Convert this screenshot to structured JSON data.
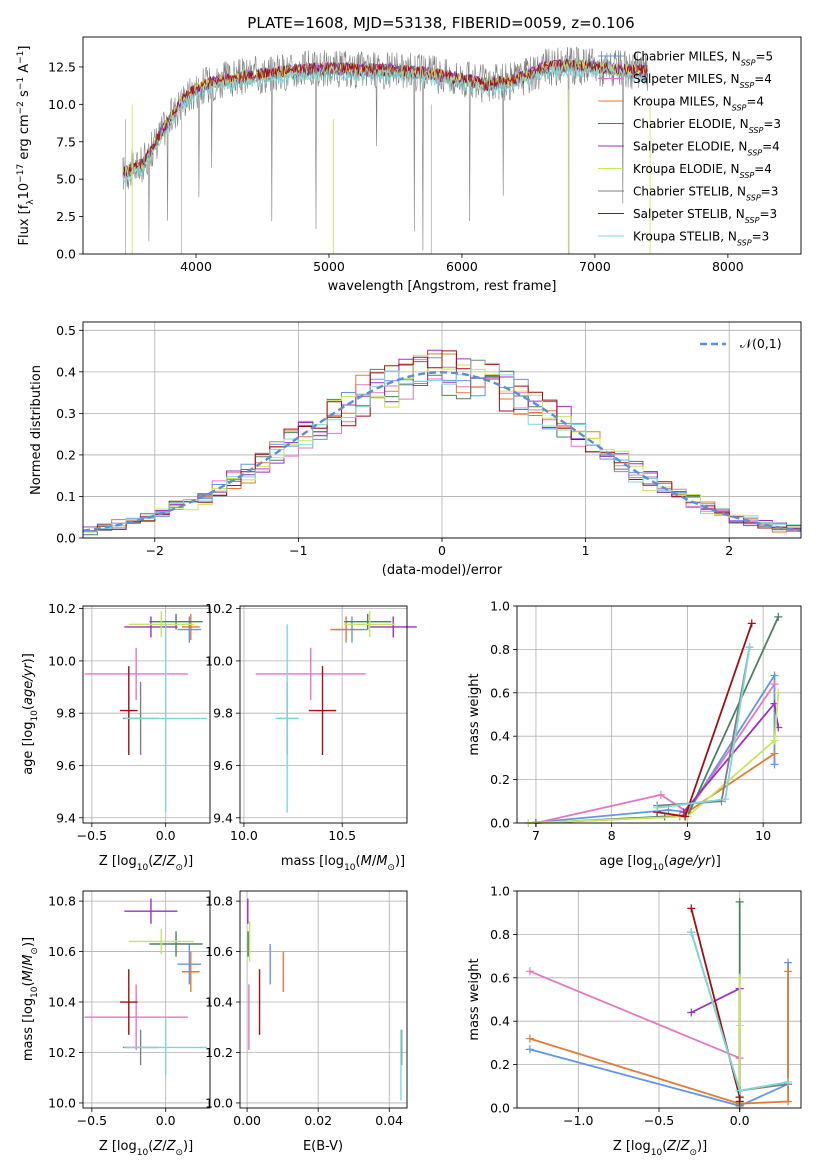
{
  "figure_title": "PLATE=1608, MJD=53138, FIBERID=0059, z=0.106",
  "model_colors": [
    "#6495ed",
    "#e377c2",
    "#e07b39",
    "#4c8062",
    "#9b30c6",
    "#c8e65a",
    "#7f7f7f",
    "#a01010",
    "#7fd8d8"
  ],
  "chart_data": [
    {
      "type": "line",
      "title": "PLATE=1608, MJD=53138, FIBERID=0059, z=0.106",
      "xlabel": "wavelength [Angstrom, rest frame]",
      "ylabel": "Flux [f_λ 10^-17 erg cm^-2 s^-1 A^-1]",
      "xlim": [
        3150,
        8550
      ],
      "ylim": [
        0,
        14.5
      ],
      "xticks": [
        "4000",
        "5000",
        "6000",
        "7000",
        "8000"
      ],
      "yticks": [
        "0.0",
        "2.5",
        "5.0",
        "7.5",
        "10.0",
        "12.5"
      ],
      "grid": false,
      "legend_position": "top-right",
      "spectrum_shape": {
        "x": [
          3450,
          3600,
          3700,
          3800,
          3900,
          4000,
          4100,
          4200,
          4400,
          4600,
          4800,
          5000,
          5200,
          5400,
          5600,
          5800,
          6000,
          6200,
          6400,
          6600,
          6800,
          7000,
          7200,
          7400
        ],
        "y": [
          5.4,
          6.0,
          7.5,
          9.0,
          10.3,
          11.0,
          11.4,
          11.6,
          11.9,
          12.1,
          12.3,
          12.4,
          12.3,
          12.3,
          12.2,
          12.0,
          11.7,
          11.3,
          11.6,
          12.4,
          12.6,
          12.5,
          12.3,
          12.2
        ]
      },
      "series": [
        {
          "name": "Chabrier MILES, N_SSP=5"
        },
        {
          "name": "Salpeter MILES, N_SSP=4"
        },
        {
          "name": "Kroupa MILES, N_SSP=4"
        },
        {
          "name": "Chabrier ELODIE, N_SSP=3"
        },
        {
          "name": "Salpeter ELODIE, N_SSP=4"
        },
        {
          "name": "Kroupa ELODIE, N_SSP=4"
        },
        {
          "name": "Chabrier STELIB, N_SSP=3"
        },
        {
          "name": "Salpeter STELIB, N_SSP=3"
        },
        {
          "name": "Kroupa STELIB, N_SSP=3"
        }
      ]
    },
    {
      "type": "line",
      "xlabel": "(data-model)/error",
      "ylabel": "Normed distribution",
      "xlim": [
        -2.5,
        2.5
      ],
      "ylim": [
        0,
        0.52
      ],
      "xticks": [
        "−2",
        "−1",
        "0",
        "1",
        "2"
      ],
      "yticks": [
        "0.0",
        "0.1",
        "0.2",
        "0.3",
        "0.4",
        "0.5"
      ],
      "grid": true,
      "legend": [
        "𝒩(0,1)"
      ],
      "legend_position": "top-right",
      "bin_width": 0.1
    },
    {
      "type": "scatter",
      "xlabel": "Z [log10(Z/Z⊙)]",
      "ylabel": "age [log10(age/yr)]",
      "xlim": [
        -0.56,
        0.3
      ],
      "ylim": [
        9.38,
        10.21
      ],
      "xticks": [
        "−0.5",
        "0.0"
      ],
      "yticks": [
        "9.4",
        "9.6",
        "9.8",
        "10.0",
        "10.2"
      ],
      "points": [
        {
          "x": 0.16,
          "y": 10.12,
          "xerr": 0.08,
          "yerr": 0.05
        },
        {
          "x": -0.2,
          "y": 9.95,
          "xerr": 0.35,
          "yerr": 0.1
        },
        {
          "x": 0.17,
          "y": 10.13,
          "xerr": 0.06,
          "yerr": 0.05
        },
        {
          "x": 0.07,
          "y": 10.15,
          "xerr": 0.18,
          "yerr": 0.03
        },
        {
          "x": -0.1,
          "y": 10.13,
          "xerr": 0.18,
          "yerr": 0.04
        },
        {
          "x": -0.03,
          "y": 10.14,
          "xerr": 0.22,
          "yerr": 0.05
        },
        {
          "x": -0.17,
          "y": 9.78,
          "xerr": 0.12,
          "yerr": 0.14
        },
        {
          "x": -0.25,
          "y": 9.81,
          "xerr": 0.06,
          "yerr": 0.17
        },
        {
          "x": 0.0,
          "y": 9.78,
          "xerr": 0.28,
          "yerr": 0.36
        }
      ]
    },
    {
      "type": "scatter",
      "xlabel": "mass [log10(M/M⊙)]",
      "ylabel": "",
      "xlim": [
        9.98,
        10.83
      ],
      "ylim": [
        9.38,
        10.21
      ],
      "xticks": [
        "10.0",
        "10.5"
      ],
      "yticks": [
        "9.4",
        "9.6",
        "9.8",
        "10.0",
        "10.2"
      ],
      "points": [
        {
          "x": 10.55,
          "y": 10.12,
          "xerr": 0.08,
          "yerr": 0.05
        },
        {
          "x": 10.34,
          "y": 9.95,
          "xerr": 0.28,
          "yerr": 0.1
        },
        {
          "x": 10.52,
          "y": 10.12,
          "xerr": 0.08,
          "yerr": 0.05
        },
        {
          "x": 10.63,
          "y": 10.15,
          "xerr": 0.12,
          "yerr": 0.03
        },
        {
          "x": 10.76,
          "y": 10.13,
          "xerr": 0.12,
          "yerr": 0.04
        },
        {
          "x": 10.64,
          "y": 10.14,
          "xerr": 0.13,
          "yerr": 0.05
        },
        {
          "x": 10.22,
          "y": 9.78,
          "xerr": 0.05,
          "yerr": 0.14
        },
        {
          "x": 10.4,
          "y": 9.81,
          "xerr": 0.07,
          "yerr": 0.17
        },
        {
          "x": 10.22,
          "y": 9.78,
          "xerr": 0.06,
          "yerr": 0.36
        }
      ]
    },
    {
      "type": "line",
      "xlabel": "age [log10(age/yr)]",
      "ylabel": "mass weight",
      "xlim": [
        6.75,
        10.5
      ],
      "ylim": [
        0,
        1
      ],
      "xticks": [
        "7",
        "8",
        "9",
        "10"
      ],
      "yticks": [
        "0.0",
        "0.2",
        "0.4",
        "0.6",
        "0.8",
        "1.0"
      ],
      "series": [
        {
          "x": [
            6.9,
            8.75,
            9.0,
            10.15,
            10.15
          ],
          "y": [
            0.0,
            0.06,
            0.05,
            0.68,
            0.27
          ]
        },
        {
          "x": [
            7.0,
            8.65,
            9.0,
            10.15
          ],
          "y": [
            0.0,
            0.13,
            0.05,
            0.64
          ]
        },
        {
          "x": [
            7.0,
            8.9,
            9.0,
            10.15
          ],
          "y": [
            0.0,
            0.03,
            0.05,
            0.32
          ]
        },
        {
          "x": [
            7.0,
            8.7,
            9.0,
            10.2
          ],
          "y": [
            0.0,
            0.03,
            0.03,
            0.95
          ]
        },
        {
          "x": [
            8.95,
            10.15,
            10.2
          ],
          "y": [
            0.05,
            0.55,
            0.44
          ]
        },
        {
          "x": [
            6.9,
            9.0,
            10.15,
            10.2
          ],
          "y": [
            0.0,
            0.03,
            0.38,
            0.6
          ]
        },
        {
          "x": [
            8.6,
            9.45,
            9.82
          ],
          "y": [
            0.08,
            0.1,
            0.81
          ]
        },
        {
          "x": [
            8.6,
            8.97,
            9.85
          ],
          "y": [
            0.05,
            0.03,
            0.92
          ]
        },
        {
          "x": [
            8.6,
            9.5,
            9.82
          ],
          "y": [
            0.07,
            0.11,
            0.81
          ]
        }
      ]
    },
    {
      "type": "scatter",
      "xlabel": "Z [log10(Z/Z⊙)]",
      "ylabel": "mass [log10(M/M⊙)]",
      "xlim": [
        -0.56,
        0.3
      ],
      "ylim": [
        9.98,
        10.84
      ],
      "xticks": [
        "−0.5",
        "0.0"
      ],
      "yticks": [
        "10.0",
        "10.2",
        "10.4",
        "10.6",
        "10.8"
      ],
      "points": [
        {
          "x": 0.16,
          "y": 10.55,
          "xerr": 0.08,
          "yerr": 0.08
        },
        {
          "x": -0.2,
          "y": 10.34,
          "xerr": 0.35,
          "yerr": 0.13
        },
        {
          "x": 0.17,
          "y": 10.52,
          "xerr": 0.06,
          "yerr": 0.08
        },
        {
          "x": 0.07,
          "y": 10.63,
          "xerr": 0.18,
          "yerr": 0.05
        },
        {
          "x": -0.1,
          "y": 10.76,
          "xerr": 0.18,
          "yerr": 0.05
        },
        {
          "x": -0.03,
          "y": 10.64,
          "xerr": 0.22,
          "yerr": 0.05
        },
        {
          "x": -0.17,
          "y": 10.22,
          "xerr": 0.12,
          "yerr": 0.07
        },
        {
          "x": -0.25,
          "y": 10.4,
          "xerr": 0.06,
          "yerr": 0.13
        },
        {
          "x": 0.0,
          "y": 10.22,
          "xerr": 0.28,
          "yerr": 0.11
        }
      ]
    },
    {
      "type": "scatter",
      "xlabel": "E(B-V)",
      "ylabel": "",
      "xlim": [
        -0.002,
        0.045
      ],
      "ylim": [
        9.98,
        10.84
      ],
      "xticks": [
        "0.00",
        "0.02",
        "0.04"
      ],
      "yticks": [
        "10.0",
        "10.2",
        "10.4",
        "10.6",
        "10.8"
      ],
      "points": [
        {
          "x": 0.0065,
          "y": 10.55,
          "yerr": 0.08
        },
        {
          "x": 0.0005,
          "y": 10.34,
          "yerr": 0.13
        },
        {
          "x": 0.0102,
          "y": 10.52,
          "yerr": 0.08
        },
        {
          "x": 0.0003,
          "y": 10.63,
          "yerr": 0.05
        },
        {
          "x": 0.0002,
          "y": 10.76,
          "yerr": 0.05
        },
        {
          "x": 0.0007,
          "y": 10.64,
          "yerr": 0.08
        },
        {
          "x": 0.0435,
          "y": 10.22,
          "yerr": 0.07
        },
        {
          "x": 0.0035,
          "y": 10.4,
          "yerr": 0.13
        },
        {
          "x": 0.0433,
          "y": 10.15,
          "yerr": 0.14
        }
      ]
    },
    {
      "type": "line",
      "xlabel": "Z [log10(Z/Z⊙)]",
      "ylabel": "mass weight",
      "xlim": [
        -1.38,
        0.38
      ],
      "ylim": [
        0,
        1
      ],
      "xticks": [
        "−1.0",
        "−0.5",
        "0.0"
      ],
      "yticks": [
        "0.0",
        "0.2",
        "0.4",
        "0.6",
        "0.8",
        "1.0"
      ],
      "series": [
        {
          "x": [
            -1.3,
            0.0,
            0.3,
            0.3
          ],
          "y": [
            0.27,
            0.01,
            0.11,
            0.67
          ]
        },
        {
          "x": [
            -1.3,
            0.0,
            0.0
          ],
          "y": [
            0.63,
            0.23,
            0.0
          ]
        },
        {
          "x": [
            -1.3,
            0.0,
            0.3,
            0.3
          ],
          "y": [
            0.32,
            0.02,
            0.03,
            0.63
          ]
        },
        {
          "x": [
            0.0,
            0.0,
            0.0
          ],
          "y": [
            0.95,
            0.01,
            0.03
          ]
        },
        {
          "x": [
            -0.3,
            0.0,
            0.0
          ],
          "y": [
            0.44,
            0.55,
            0.05
          ]
        },
        {
          "x": [
            0.0,
            0.0,
            0.0
          ],
          "y": [
            0.6,
            0.38,
            0.03
          ]
        },
        {
          "x": [
            -0.3,
            0.0,
            0.3
          ],
          "y": [
            0.81,
            0.08,
            0.11
          ]
        },
        {
          "x": [
            -0.3,
            0.0,
            0.0
          ],
          "y": [
            0.92,
            0.05,
            0.03
          ]
        },
        {
          "x": [
            -0.3,
            0.0,
            0.3
          ],
          "y": [
            0.81,
            0.08,
            0.12
          ]
        }
      ]
    }
  ]
}
